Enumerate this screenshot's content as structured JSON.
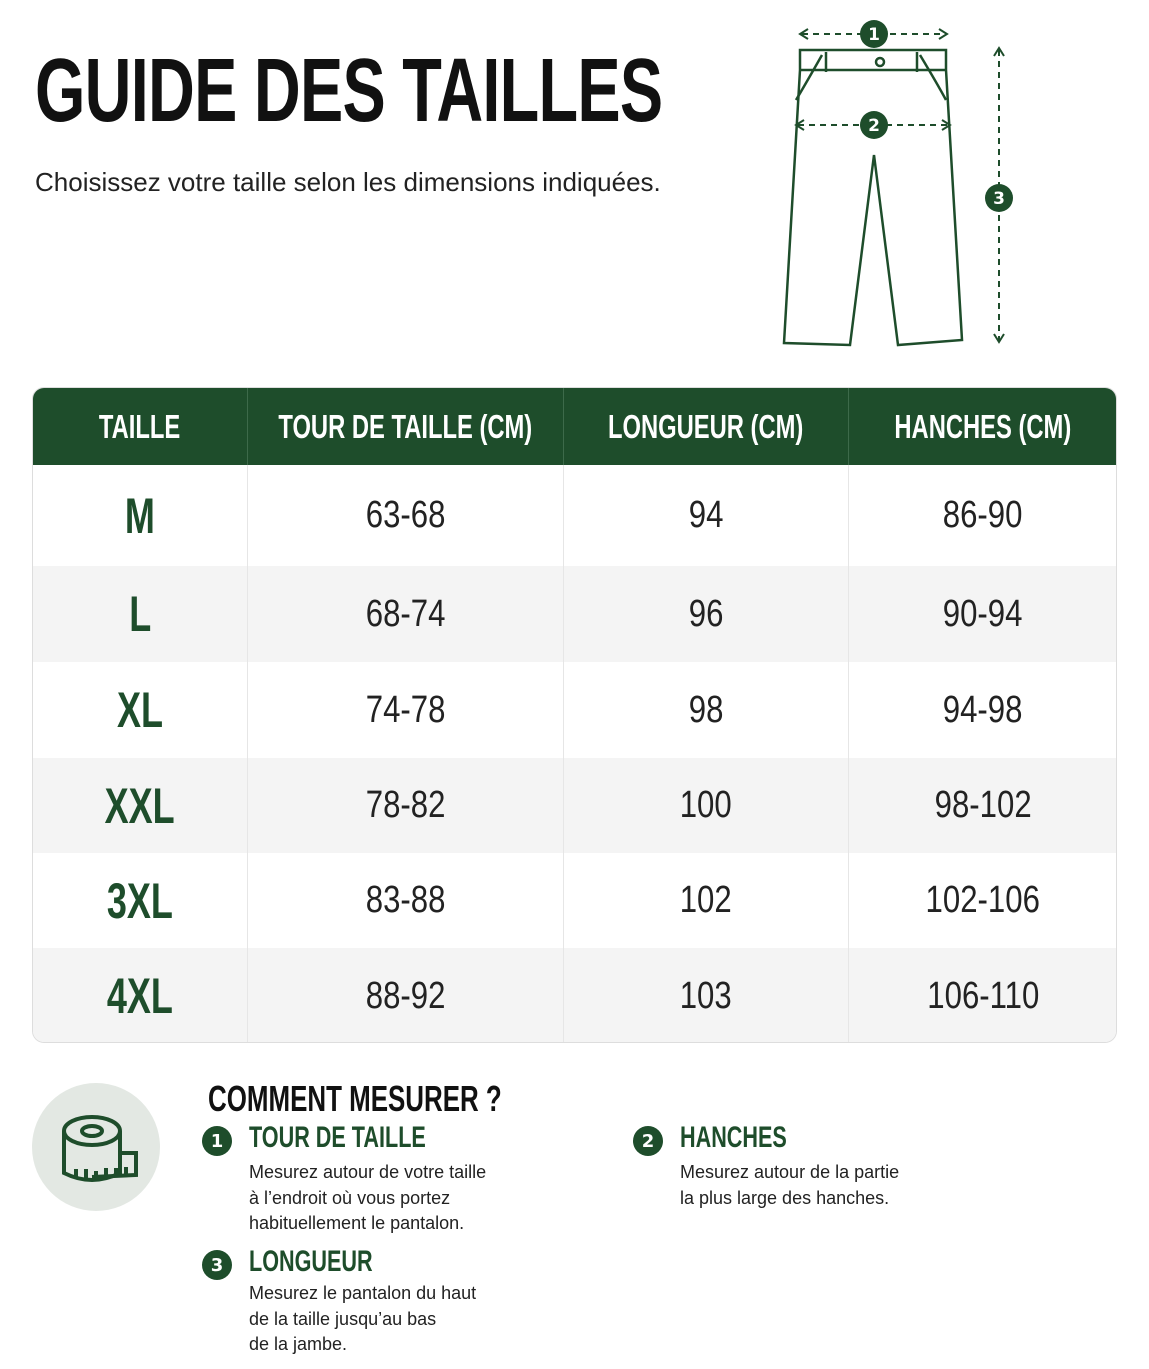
{
  "header": {
    "title": "GUIDE DES TAILLES",
    "subtitle": "Choisissez votre taille selon les dimensions indiquées."
  },
  "diagram": {
    "markers": [
      "1",
      "2",
      "3"
    ]
  },
  "table": {
    "columns": [
      "TAILLE",
      "TOUR DE TAILLE (CM)",
      "LONGUEUR (CM)",
      "HANCHES (CM)"
    ],
    "rows": [
      [
        "M",
        "63-68",
        "94",
        "86-90"
      ],
      [
        "L",
        "68-74",
        "96",
        "90-94"
      ],
      [
        "XL",
        "74-78",
        "98",
        "94-98"
      ],
      [
        "XXL",
        "78-82",
        "100",
        "98-102"
      ],
      [
        "3XL",
        "83-88",
        "102",
        "102-106"
      ],
      [
        "4XL",
        "88-92",
        "103",
        "106-110"
      ]
    ]
  },
  "howto": {
    "title": "COMMENT MESURER ?",
    "items": [
      {
        "number": "1",
        "title": "TOUR DE TAILLE",
        "lines": [
          "Mesurez autour de votre taille",
          "à l’endroit où vous portez",
          "habituellement le pantalon."
        ]
      },
      {
        "number": "2",
        "title": "HANCHES",
        "lines": [
          "Mesurez autour de la partie",
          "la plus large des hanches."
        ]
      },
      {
        "number": "3",
        "title": "LONGUEUR",
        "lines": [
          "Mesurez le pantalon du haut",
          "de la taille jusqu’au bas",
          "de la jambe."
        ]
      }
    ]
  }
}
